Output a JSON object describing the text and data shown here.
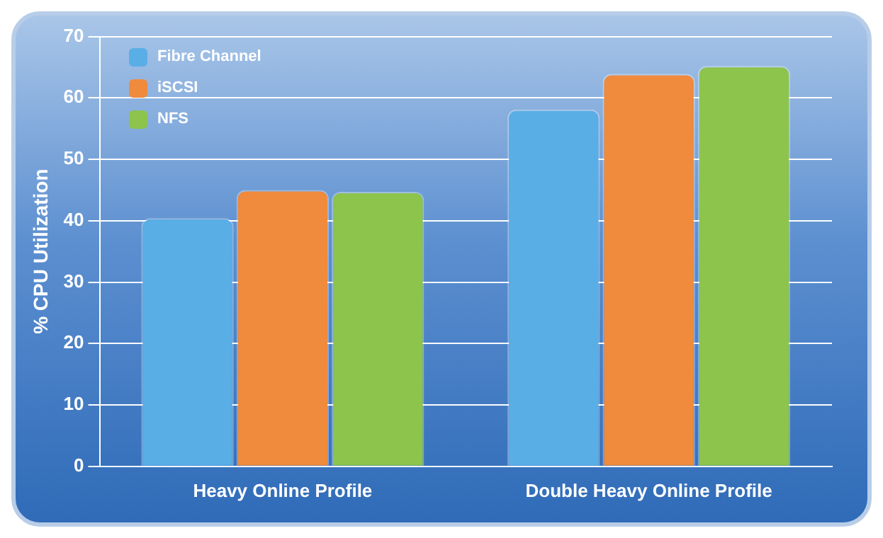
{
  "chart_data": {
    "type": "bar",
    "ylabel": "% CPU Utilization",
    "categories": [
      "Heavy Online Profile",
      "Double Heavy Online Profile"
    ],
    "series": [
      {
        "name": "Fibre Channel",
        "color": "#5aaee6",
        "values": [
          40.4,
          58.1
        ]
      },
      {
        "name": "iSCSI",
        "color": "#f08a3c",
        "values": [
          45.0,
          63.9
        ]
      },
      {
        "name": "NFS",
        "color": "#8cc44c",
        "values": [
          44.7,
          65.2
        ]
      }
    ],
    "ylim": [
      0,
      70
    ],
    "yticks": [
      0,
      10,
      20,
      30,
      40,
      50,
      60,
      70
    ],
    "grid": "y",
    "legend": "top left"
  }
}
